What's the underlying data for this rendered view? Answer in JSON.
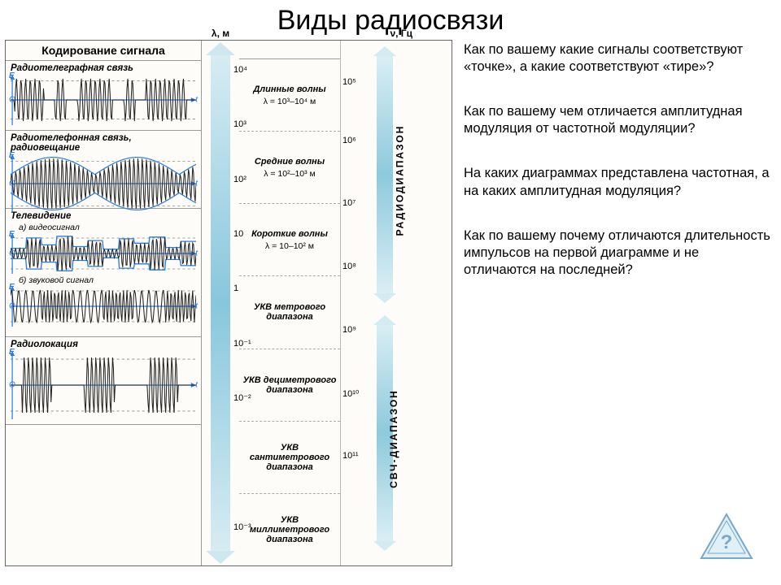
{
  "title": "Виды радиосвязи",
  "figure": {
    "signals_header": "Кодирование сигнала",
    "lambda_header": "λ, м",
    "freq_header": "ν, Гц",
    "signal_color": "#2a7de1",
    "axis_color": "#2a7de1",
    "dashed_color": "#888",
    "sections": [
      {
        "title": "Радиотелеграфная связь",
        "height": 86,
        "waves": [
          {
            "type": "burst",
            "bursts": [
              [
                0.02,
                0.18
              ],
              [
                0.24,
                0.3
              ],
              [
                0.36,
                0.55
              ],
              [
                0.61,
                0.67
              ],
              [
                0.73,
                0.95
              ]
            ],
            "amp": 0.85,
            "freq": 40
          }
        ]
      },
      {
        "title": "Радиотелефонная связь, радиовещание",
        "height": 96,
        "waves": [
          {
            "type": "am",
            "carrier": 44,
            "env": 2.2,
            "amp": 0.9,
            "envelope": true
          }
        ]
      },
      {
        "title": "Телевидение",
        "height": 158,
        "subs": [
          {
            "label": "а) видеосигнал",
            "wave": {
              "type": "video",
              "amp": 0.85,
              "freq": 46
            }
          },
          {
            "label": "б) звуковой сигнал",
            "wave": {
              "type": "fm",
              "amp": 0.8,
              "f1": 26,
              "f2": 52,
              "segments": 6
            }
          }
        ]
      },
      {
        "title": "Радиолокация",
        "height": 108,
        "waves": [
          {
            "type": "burst",
            "bursts": [
              [
                0.06,
                0.22
              ],
              [
                0.4,
                0.56
              ],
              [
                0.74,
                0.9
              ]
            ],
            "amp": 0.85,
            "freq": 44
          }
        ]
      }
    ],
    "lambda_ticks": [
      {
        "v": "10⁴",
        "p": 0.03
      },
      {
        "v": "10³",
        "p": 0.14
      },
      {
        "v": "10²",
        "p": 0.25
      },
      {
        "v": "10",
        "p": 0.36
      },
      {
        "v": "1",
        "p": 0.47
      },
      {
        "v": "10⁻¹",
        "p": 0.58
      },
      {
        "v": "10⁻²",
        "p": 0.69
      },
      {
        "v": "10⁻³",
        "p": 0.95
      }
    ],
    "freq_ticks": [
      {
        "v": "10⁵",
        "p": 0.07
      },
      {
        "v": "10⁶",
        "p": 0.18
      },
      {
        "v": "10⁷",
        "p": 0.3
      },
      {
        "v": "10⁸",
        "p": 0.42
      },
      {
        "v": "10⁹",
        "p": 0.54
      },
      {
        "v": "10¹⁰",
        "p": 0.66
      },
      {
        "v": "10¹¹",
        "p": 0.78
      }
    ],
    "bands": [
      {
        "name": "Длинные волны",
        "formula": "λ = 10³–10⁴ м"
      },
      {
        "name": "Средние волны",
        "formula": "λ = 10²–10³ м"
      },
      {
        "name": "Короткие волны",
        "formula": "λ = 10–10² м"
      },
      {
        "name": "УКВ метрового диапазона",
        "formula": ""
      },
      {
        "name": "УКВ дециметрового диапазона",
        "formula": ""
      },
      {
        "name": "УКВ сантиметрового диапазона",
        "formula": ""
      },
      {
        "name": "УКВ миллиметрового диапазона",
        "formula": ""
      }
    ],
    "ranges": [
      {
        "label": "РАДИОДИАПАЗОН",
        "top": 0.03,
        "bottom": 0.48
      },
      {
        "label": "СВЧ-ДИАПАЗОН",
        "top": 0.54,
        "bottom": 0.95
      }
    ]
  },
  "questions": {
    "q1": "Как по вашему какие сигналы соответствуют «точке», а какие соответствуют «тире»?",
    "q2": "Как по вашему чем отличается амплитудная модуляция от частотной модуляции?",
    "q3": "На каких диаграммах представлена частотная, а на каких амплитудная модуляция?",
    "q4": "Как по вашему почему отличаются длительность импульсов на первой диаграмме и не отличаются на последней?"
  },
  "triangle": {
    "stroke": "#7aa8c8",
    "fill": "#dff0f6",
    "mark": "?"
  }
}
